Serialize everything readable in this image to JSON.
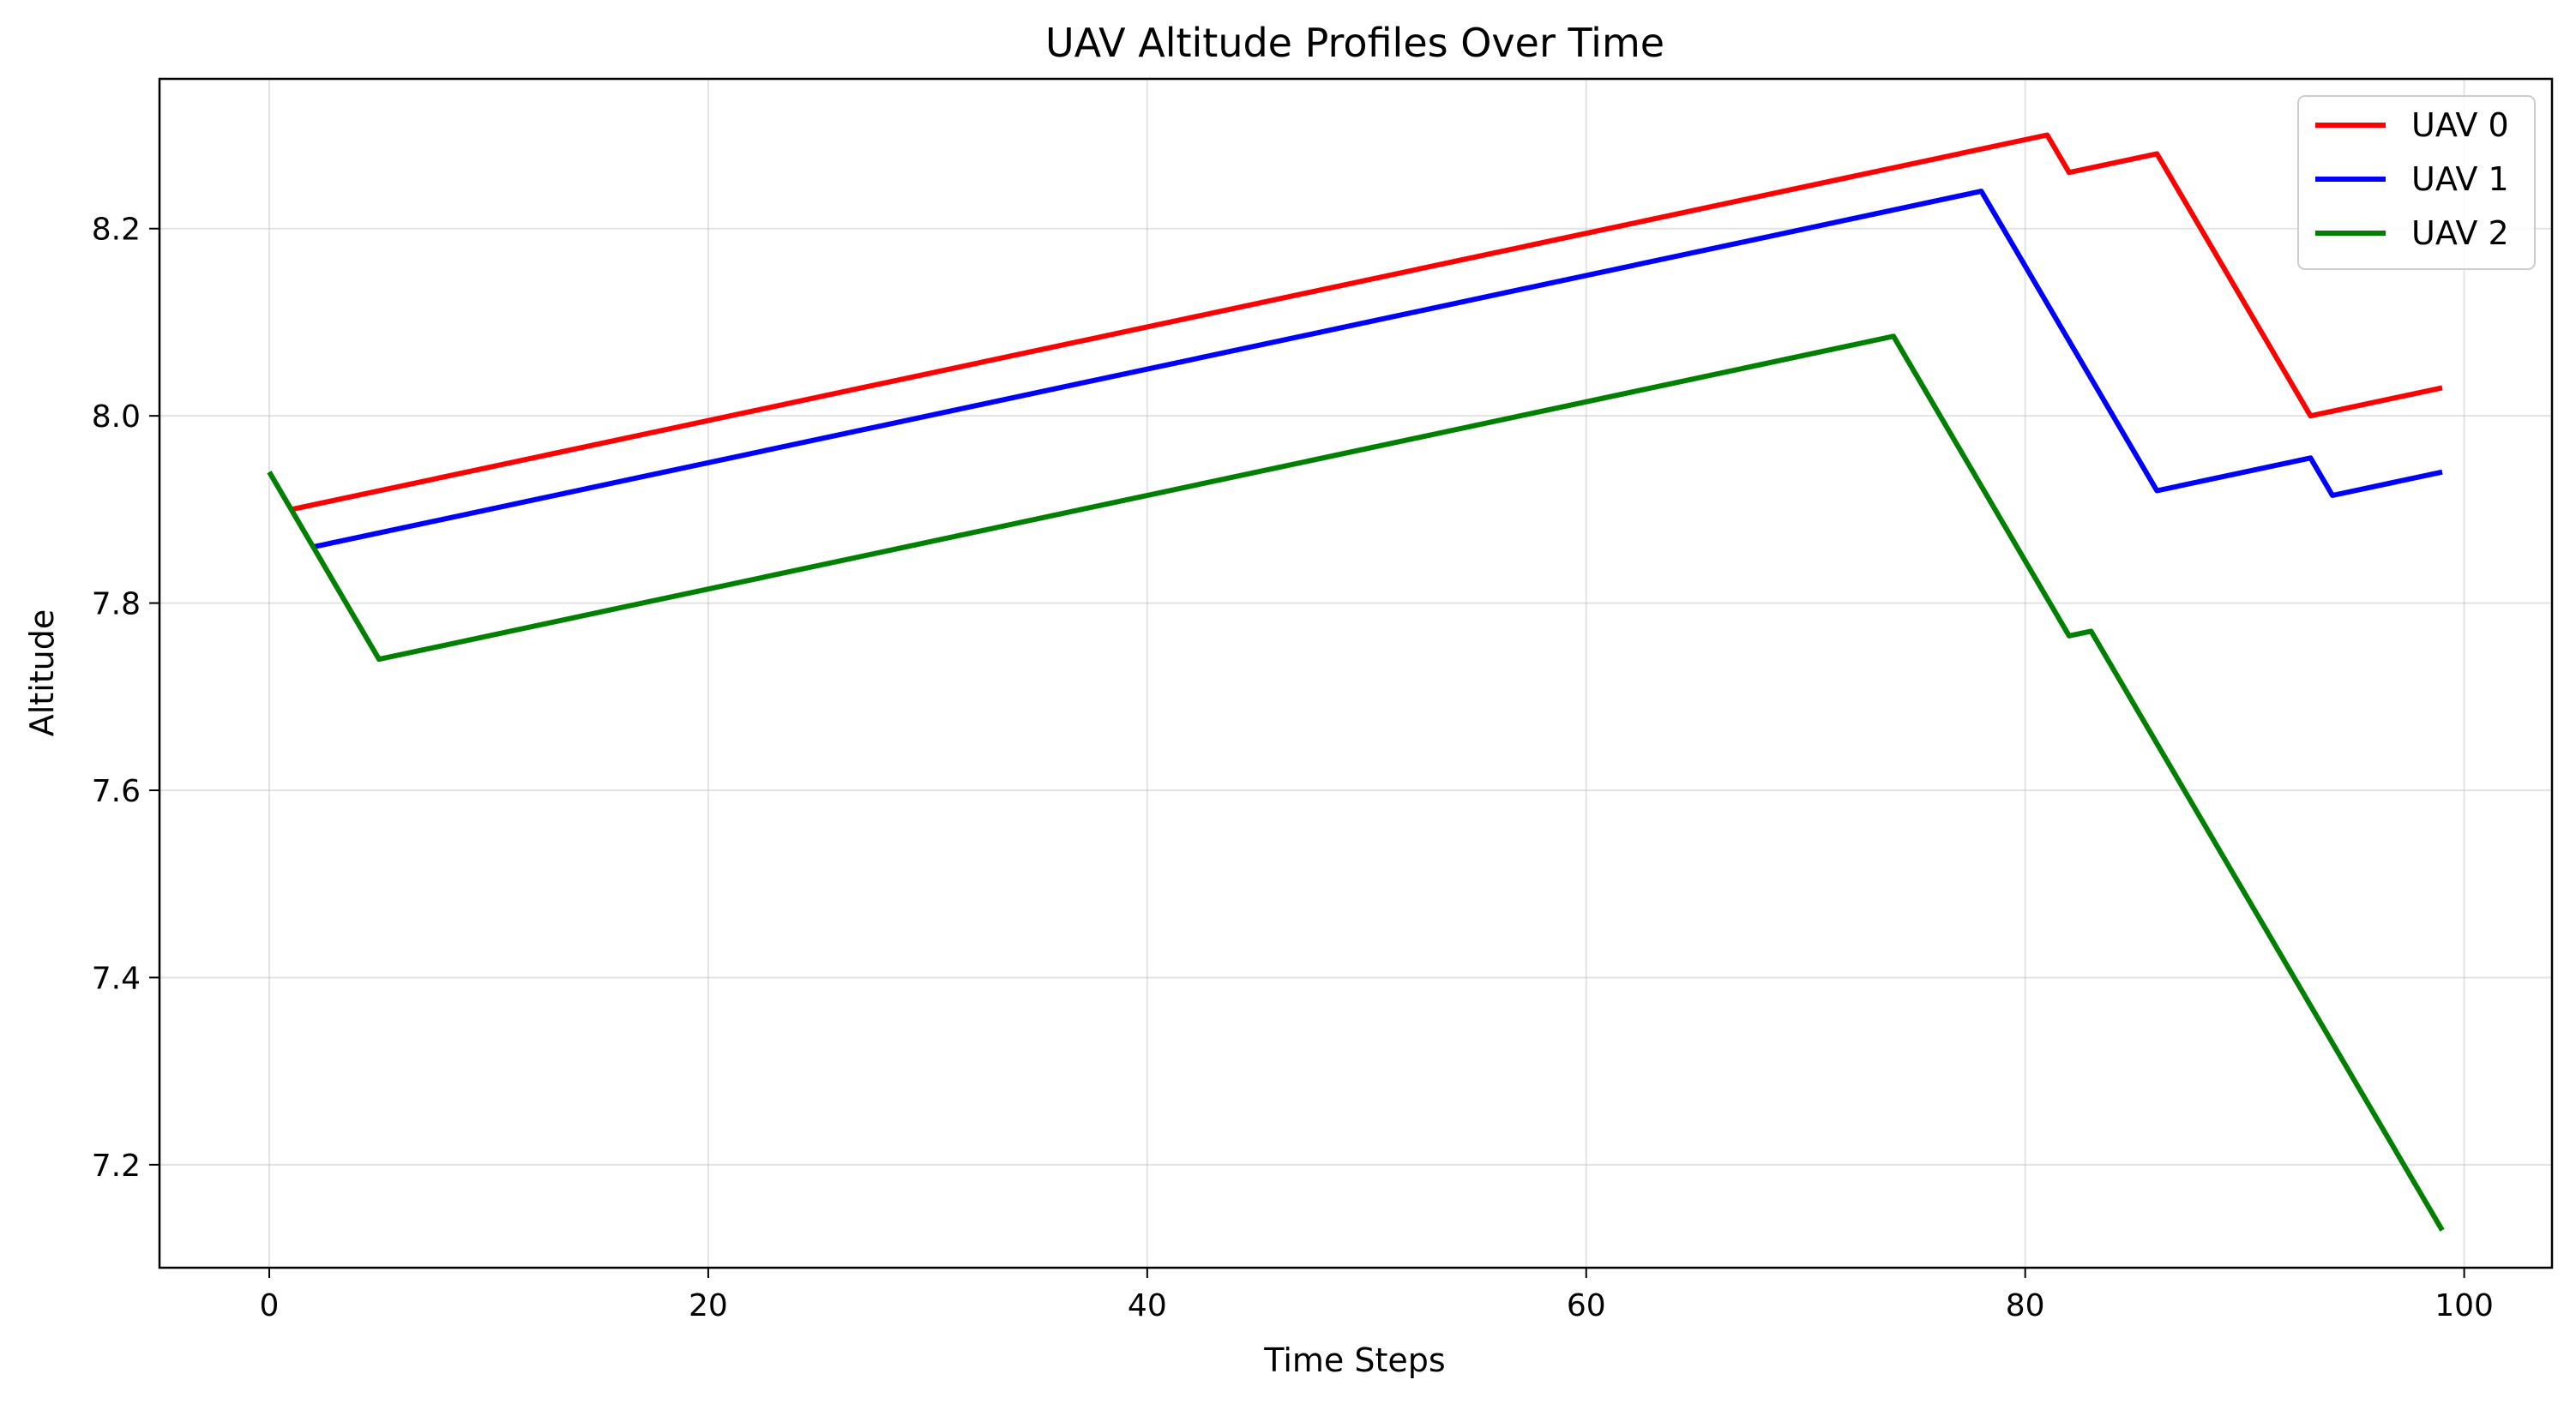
{
  "chart_data": {
    "type": "line",
    "title": "UAV Altitude Profiles Over Time",
    "xlabel": "Time Steps",
    "ylabel": "Altitude",
    "xlim": [
      -5,
      104
    ],
    "ylim": [
      7.09,
      8.36
    ],
    "xticks": [
      0,
      20,
      40,
      60,
      80,
      100
    ],
    "yticks": [
      7.2,
      7.4,
      7.6,
      7.8,
      8.0,
      8.2
    ],
    "grid": true,
    "legend_position": "top-right",
    "series": [
      {
        "name": "UAV 0",
        "color": "#ff0000",
        "points": [
          [
            1,
            7.9
          ],
          [
            81,
            8.3
          ],
          [
            82,
            8.26
          ],
          [
            86,
            8.28
          ],
          [
            93,
            8.0
          ],
          [
            99,
            8.03
          ]
        ]
      },
      {
        "name": "UAV 1",
        "color": "#0000ff",
        "points": [
          [
            2,
            7.86
          ],
          [
            78,
            8.24
          ],
          [
            86,
            7.92
          ],
          [
            93,
            7.955
          ],
          [
            94,
            7.915
          ],
          [
            99,
            7.94
          ]
        ]
      },
      {
        "name": "UAV 2",
        "color": "#008000",
        "points": [
          [
            0,
            7.94
          ],
          [
            5,
            7.74
          ],
          [
            74,
            8.085
          ],
          [
            82,
            7.765
          ],
          [
            83,
            7.77
          ],
          [
            99,
            7.13
          ]
        ]
      }
    ]
  }
}
